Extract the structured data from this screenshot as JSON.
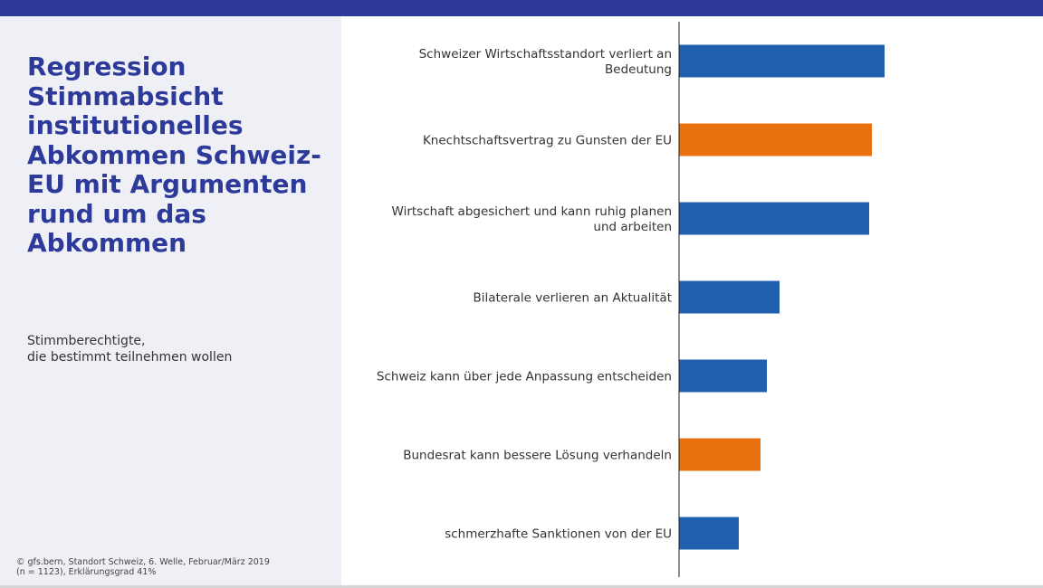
{
  "title": "Regression Stimmabsicht institutionelles Abkommen Schweiz-EU mit Argumenten rund um das Abkommen",
  "subtitle": {
    "line1": "Stimmberechtigte,",
    "line2": "die bestimmt teilnehmen wollen"
  },
  "source": {
    "line1": "© gfs.bern, Standort Schweiz, 6. Welle, Februar/März 2019",
    "line2": "(n = 1123), Erklärungsgrad 41%"
  },
  "colors": {
    "header_bar": "#2d3a9a",
    "title": "#2d3a9a",
    "blue_bar": "#1f5fad",
    "orange_bar": "#e8700e",
    "panel": "#eef0f5"
  },
  "chart_data": {
    "type": "bar",
    "orientation": "horizontal",
    "categories": [
      "Schweizer Wirtschaftsstandort verliert an Bedeutung",
      "Knechtschaftsvertrag zu Gunsten der EU",
      "Wirtschaft abgesichert und kann ruhig planen und arbeiten",
      "Bilaterale verlieren an Aktualität",
      "Schweiz kann über jede Anpassung entscheiden",
      "Bundesrat kann bessere Lösung verhandeln",
      "schmerzhafte Sanktionen von der EU"
    ],
    "values": [
      0.227,
      0.213,
      0.21,
      0.111,
      0.097,
      0.09,
      0.066
    ],
    "bar_colors": [
      "#1f5fad",
      "#e8700e",
      "#1f5fad",
      "#1f5fad",
      "#1f5fad",
      "#e8700e",
      "#1f5fad"
    ],
    "xlim": [
      0,
      0.4
    ],
    "grid": false,
    "legend": "none"
  }
}
